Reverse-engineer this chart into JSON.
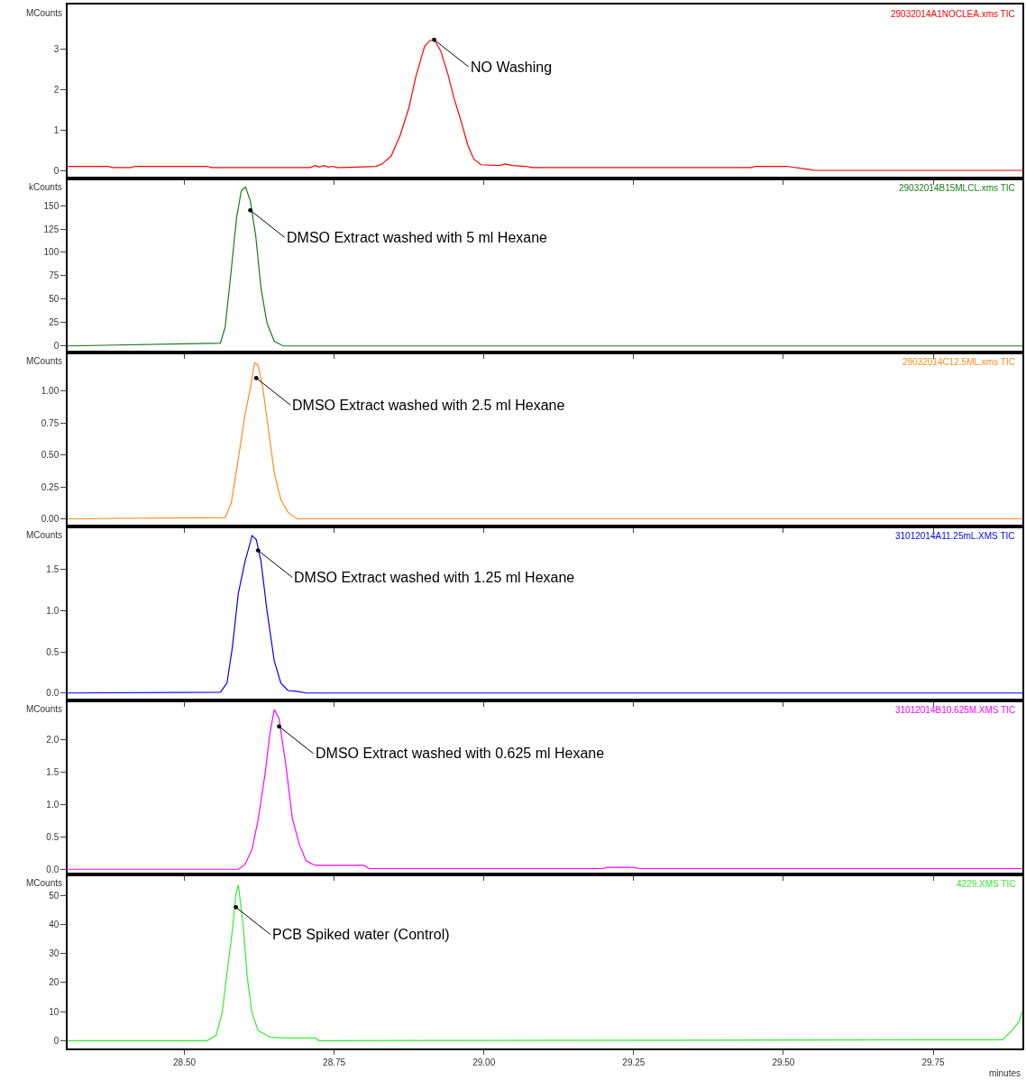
{
  "chart_data": [
    {
      "type": "line",
      "ylabel": "MCounts",
      "tick_labels": "y",
      "xlim": [
        28.305,
        29.899
      ],
      "xticks": [
        {
          "value": 28.5,
          "label": null
        },
        {
          "value": 28.75,
          "label": null
        },
        {
          "value": 29.0,
          "label": null
        },
        {
          "value": 29.25,
          "label": null
        },
        {
          "value": 29.5,
          "label": null
        },
        {
          "value": 29.75,
          "label": null
        }
      ],
      "ylim": [
        -0.2,
        4.1
      ],
      "yticks": [
        0,
        1,
        2,
        3
      ],
      "x": [
        28.305,
        28.372,
        28.38,
        28.41,
        28.417,
        28.538,
        28.545,
        28.71,
        28.718,
        28.725,
        28.733,
        28.74,
        28.748,
        28.755,
        28.763,
        28.82,
        28.83,
        28.845,
        28.86,
        28.875,
        28.886,
        28.901,
        28.91,
        28.917,
        28.928,
        28.94,
        28.95,
        28.962,
        28.973,
        28.983,
        28.995,
        29.026,
        29.036,
        29.048,
        29.071,
        29.08,
        29.446,
        29.453,
        29.506,
        29.544,
        29.551,
        29.899
      ],
      "series": [
        {
          "name": "29032014A1NOCLEA.xms TIC",
          "color": "#ff0000",
          "values": [
            0.1,
            0.1,
            0.07,
            0.07,
            0.1,
            0.1,
            0.07,
            0.07,
            0.12,
            0.08,
            0.12,
            0.08,
            0.1,
            0.07,
            0.07,
            0.1,
            0.16,
            0.35,
            0.86,
            1.56,
            2.3,
            3.07,
            3.21,
            3.23,
            2.95,
            2.37,
            1.79,
            1.21,
            0.63,
            0.28,
            0.14,
            0.12,
            0.16,
            0.12,
            0.1,
            0.07,
            0.07,
            0.1,
            0.1,
            0.02,
            0.0,
            0.0
          ]
        }
      ],
      "annotations": [
        {
          "text": "NO Washing",
          "x": 28.917,
          "y": 3.23
        }
      ]
    },
    {
      "type": "line",
      "ylabel": "kCounts",
      "tick_labels": "y",
      "xlim": [
        28.305,
        29.899
      ],
      "xticks": [
        {
          "value": 28.5,
          "label": null
        },
        {
          "value": 28.75,
          "label": null
        },
        {
          "value": 29.0,
          "label": null
        },
        {
          "value": 29.25,
          "label": null
        },
        {
          "value": 29.5,
          "label": null
        },
        {
          "value": 29.75,
          "label": null
        }
      ],
      "ylim": [
        -7,
        179
      ],
      "yticks": [
        0,
        25,
        50,
        75,
        100,
        125,
        150
      ],
      "x": [
        28.305,
        28.56,
        28.568,
        28.578,
        28.587,
        28.595,
        28.602,
        28.61,
        28.619,
        28.628,
        28.638,
        28.65,
        28.665,
        29.899
      ],
      "series": [
        {
          "name": "29032014B15MLCL.xms TIC",
          "color": "#1a7a1a",
          "values": [
            0,
            3,
            20,
            80,
            137,
            166,
            170,
            155,
            118,
            61,
            24,
            5,
            0,
            0
          ]
        }
      ],
      "annotations": [
        {
          "text": "DMSO Extract washed with 5 ml Hexane",
          "x": 28.61,
          "y": 145
        }
      ]
    },
    {
      "type": "line",
      "ylabel": "MCounts",
      "tick_labels": "y",
      "xlim": [
        28.305,
        29.899
      ],
      "xticks": [
        {
          "value": 28.5,
          "label": null
        },
        {
          "value": 28.75,
          "label": null
        },
        {
          "value": 29.0,
          "label": null
        },
        {
          "value": 29.25,
          "label": null
        },
        {
          "value": 29.5,
          "label": null
        },
        {
          "value": 29.75,
          "label": null
        }
      ],
      "ylim": [
        -0.06,
        1.3
      ],
      "yticks": [
        {
          "value": 0,
          "label": "0.00"
        },
        {
          "value": 0.25,
          "label": "0.25"
        },
        {
          "value": 0.5,
          "label": "0.50"
        },
        {
          "value": 0.75,
          "label": "0.75"
        },
        {
          "value": 1.0,
          "label": "1.00"
        }
      ],
      "x": [
        28.305,
        28.568,
        28.578,
        28.59,
        28.601,
        28.61,
        28.617,
        28.623,
        28.631,
        28.64,
        28.65,
        28.661,
        28.673,
        28.688,
        29.899
      ],
      "series": [
        {
          "name": "29032014C12.5ML.xms TIC",
          "color": "#ff8c1a",
          "values": [
            0,
            0.01,
            0.12,
            0.47,
            0.81,
            1.02,
            1.22,
            1.2,
            1.02,
            0.71,
            0.36,
            0.15,
            0.05,
            0,
            0
          ]
        }
      ],
      "annotations": [
        {
          "text": "DMSO Extract washed with 2.5 ml Hexane",
          "x": 28.62,
          "y": 1.1
        }
      ]
    },
    {
      "type": "line",
      "ylabel": "MCounts",
      "tick_labels": "y",
      "xlim": [
        28.305,
        29.899
      ],
      "xticks": [
        {
          "value": 28.5,
          "label": null
        },
        {
          "value": 28.75,
          "label": null
        },
        {
          "value": 29.0,
          "label": null
        },
        {
          "value": 29.25,
          "label": null
        },
        {
          "value": 29.5,
          "label": null
        },
        {
          "value": 29.75,
          "label": null
        }
      ],
      "ylim": [
        -0.09,
        2.02
      ],
      "yticks": [
        {
          "value": 0,
          "label": "0.0"
        },
        {
          "value": 0.5,
          "label": "0.5"
        },
        {
          "value": 1.0,
          "label": "1.0"
        },
        {
          "value": 1.5,
          "label": "1.5"
        }
      ],
      "x": [
        28.305,
        28.56,
        28.571,
        28.58,
        28.59,
        28.601,
        28.613,
        28.62,
        28.628,
        28.638,
        28.65,
        28.661,
        28.673,
        28.688,
        28.703,
        29.899
      ],
      "series": [
        {
          "name": "31012014A11.25mL.XMS TIC",
          "color": "#0000ff",
          "values": [
            0,
            0.01,
            0.12,
            0.55,
            1.21,
            1.59,
            1.91,
            1.86,
            1.59,
            0.99,
            0.39,
            0.12,
            0.03,
            0.02,
            0,
            0
          ]
        }
      ],
      "annotations": [
        {
          "text": "DMSO Extract washed with 1.25 ml Hexane",
          "x": 28.623,
          "y": 1.73
        }
      ]
    },
    {
      "type": "line",
      "ylabel": "MCounts",
      "tick_labels": "y",
      "xlim": [
        28.305,
        29.899
      ],
      "xticks": [
        {
          "value": 28.5,
          "label": null
        },
        {
          "value": 28.75,
          "label": null
        },
        {
          "value": 29.0,
          "label": null
        },
        {
          "value": 29.25,
          "label": null
        },
        {
          "value": 29.5,
          "label": null
        },
        {
          "value": 29.75,
          "label": null
        }
      ],
      "ylim": [
        -0.08,
        2.6
      ],
      "yticks": [
        {
          "value": 0,
          "label": "0.0"
        },
        {
          "value": 0.5,
          "label": "0.5"
        },
        {
          "value": 1.0,
          "label": "1.0"
        },
        {
          "value": 1.5,
          "label": "1.5"
        },
        {
          "value": 2.0,
          "label": "2.0"
        }
      ],
      "x": [
        28.305,
        28.59,
        28.601,
        28.613,
        28.623,
        28.635,
        28.643,
        28.65,
        28.658,
        28.67,
        28.68,
        28.692,
        28.703,
        28.718,
        28.8,
        28.808,
        29.198,
        29.205,
        29.251,
        29.258,
        29.899
      ],
      "series": [
        {
          "name": "31012014B10.625M.XMS TIC",
          "color": "#ff00ff",
          "values": [
            0,
            0,
            0.07,
            0.31,
            0.76,
            1.49,
            2.11,
            2.46,
            2.32,
            1.56,
            0.79,
            0.38,
            0.13,
            0.06,
            0.06,
            0.01,
            0.01,
            0.03,
            0.03,
            0.01,
            0.01
          ]
        }
      ],
      "annotations": [
        {
          "text": "DMSO Extract washed with 0.625 ml Hexane",
          "x": 28.658,
          "y": 2.2
        }
      ]
    },
    {
      "type": "line",
      "ylabel": "MCounts",
      "xlabel": "minutes",
      "xlim": [
        28.305,
        29.899
      ],
      "xticks": [
        {
          "value": 28.5,
          "label": "28.50"
        },
        {
          "value": 28.75,
          "label": "28.75"
        },
        {
          "value": 29.0,
          "label": "29.00"
        },
        {
          "value": 29.25,
          "label": "29.25"
        },
        {
          "value": 29.5,
          "label": "29.50"
        },
        {
          "value": 29.75,
          "label": "29.75"
        }
      ],
      "ylim": [
        -2.7,
        57.3
      ],
      "yticks": [
        0,
        10,
        20,
        30,
        40,
        50
      ],
      "x": [
        28.305,
        28.538,
        28.553,
        28.563,
        28.572,
        28.58,
        28.586,
        28.59,
        28.598,
        28.605,
        28.613,
        28.623,
        28.643,
        28.673,
        28.718,
        28.725,
        29.866,
        29.881,
        29.893,
        29.899
      ],
      "series": [
        {
          "name": "4229.XMS TIC",
          "color": "#33ee33",
          "values": [
            0,
            0,
            1.8,
            9.5,
            24.7,
            38,
            50.6,
            53.7,
            40,
            21.6,
            9.5,
            3.4,
            1.2,
            0.9,
            0.9,
            0,
            0.3,
            3.4,
            6.4,
            10
          ]
        }
      ],
      "annotations": [
        {
          "text": "PCB Spiked water (Control)",
          "x": 28.586,
          "y": 46
        }
      ]
    }
  ]
}
